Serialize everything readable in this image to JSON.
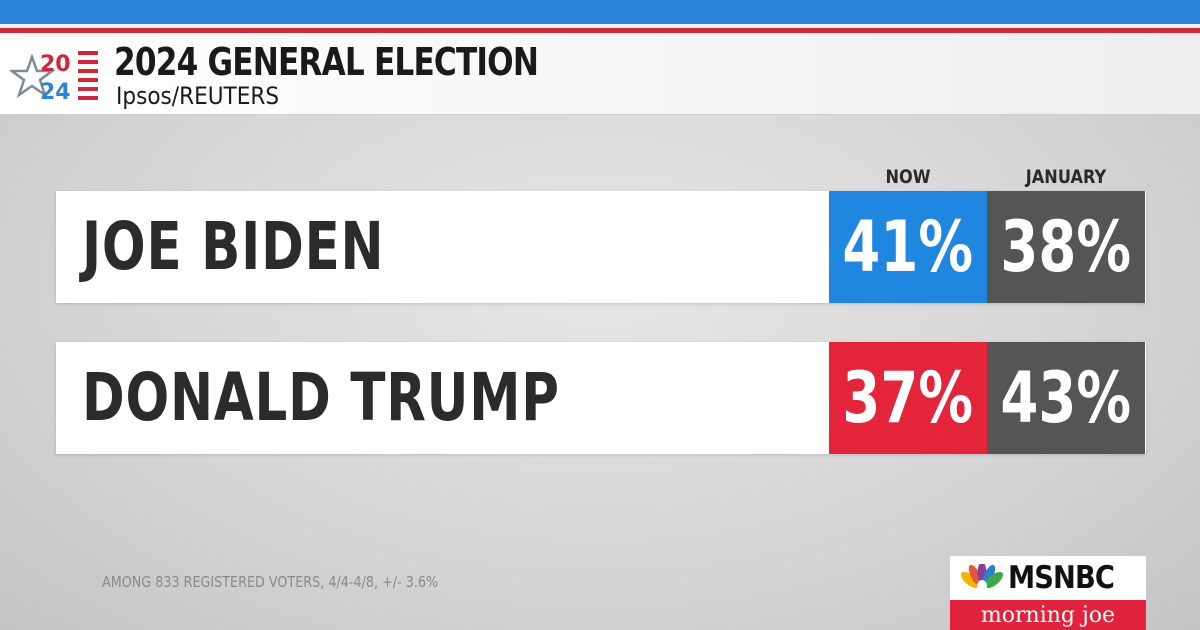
{
  "header": {
    "logo_year_top": "20",
    "logo_year_bottom": "24",
    "title": "2024 GENERAL ELECTION",
    "subtitle": "Ipsos/REUTERS"
  },
  "columns": {
    "now": "NOW",
    "january": "JANUARY"
  },
  "candidates": [
    {
      "name": "JOE BIDEN",
      "now": "41%",
      "january": "38%",
      "now_color": "#1f87e0"
    },
    {
      "name": "DONALD TRUMP",
      "now": "37%",
      "january": "43%",
      "now_color": "#e3243b"
    }
  ],
  "footnote": "AMONG 833 REGISTERED VOTERS, 4/4-4/8, +/- 3.6%",
  "branding": {
    "network": "MSNBC",
    "show": "morning joe"
  },
  "colors": {
    "biden_blue": "#1f87e0",
    "trump_red": "#e3243b",
    "january_gray": "#555555",
    "header_red": "#d0273b",
    "header_blue": "#2c84d8"
  }
}
